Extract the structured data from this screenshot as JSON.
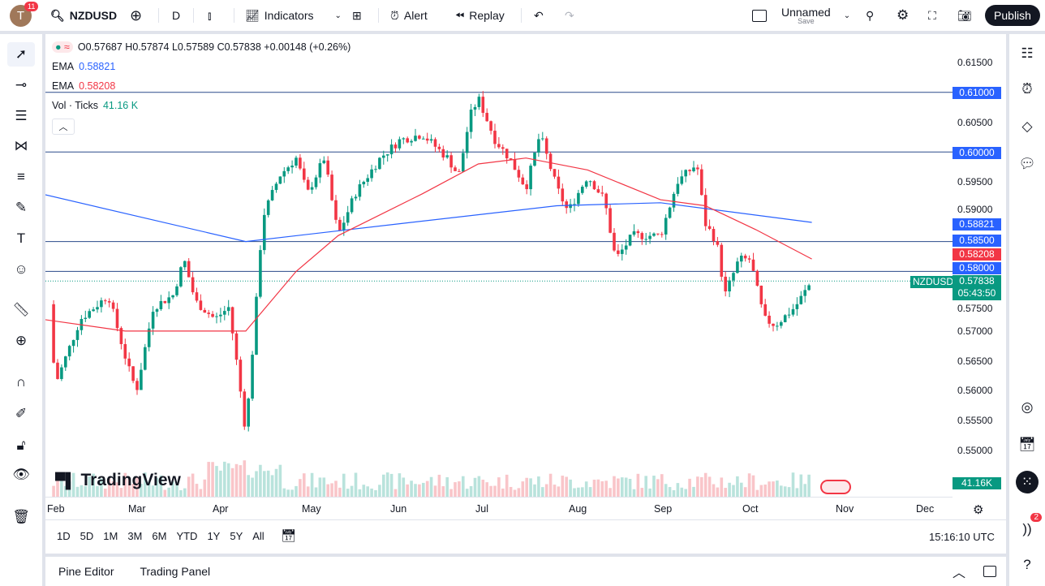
{
  "header": {
    "avatar_letter": "T",
    "notifications": "11",
    "symbol": "NZDUSD",
    "interval": "D",
    "indicators": "Indicators",
    "alert": "Alert",
    "replay": "Replay",
    "layout_name": "Unnamed",
    "save": "Save",
    "publish": "Publish"
  },
  "legend": {
    "ohlc": "O0.57687 H0.57874 L0.57589 C0.57838 +0.00148 (+0.26%)",
    "ema1_label": "EMA",
    "ema1_value": "0.58821",
    "ema2_label": "EMA",
    "ema2_value": "0.58208",
    "vol_label": "Vol · Ticks",
    "vol_value": "41.16 K"
  },
  "colors": {
    "up": "#089981",
    "down": "#f23645",
    "ema200": "#2962ff",
    "ema50": "#f23645",
    "hline": "#2a4a8a",
    "accent": "#2962ff"
  },
  "price_axis": [
    "0.61500",
    "0.61000",
    "0.60500",
    "0.60000",
    "0.59500",
    "0.59000",
    "0.58500",
    "0.58000",
    "0.57500",
    "0.57000",
    "0.56500",
    "0.56000",
    "0.55500",
    "0.55000"
  ],
  "price_labels": {
    "l61000": "0.61000",
    "l60000": "0.60000",
    "ema200": "0.58821",
    "l58500": "0.58500",
    "ema50": "0.58208",
    "l58000": "0.58000",
    "symbol": "NZDUSD",
    "last": "0.57838",
    "countdown": "05:43:50",
    "volume": "41.16K"
  },
  "time_axis": [
    "Feb",
    "Mar",
    "Apr",
    "May",
    "Jun",
    "Jul",
    "Aug",
    "Sep",
    "Oct",
    "Nov",
    "Dec"
  ],
  "logo": "TradingView",
  "ranges": [
    "1D",
    "5D",
    "1M",
    "3M",
    "6M",
    "YTD",
    "1Y",
    "5Y",
    "All"
  ],
  "clock": "15:16:10 UTC",
  "bottom_tabs": [
    "Pine Editor",
    "Trading Panel"
  ],
  "right_badge": "2",
  "chart_data": {
    "type": "candlestick",
    "symbol": "NZDUSD",
    "horizontal_lines": [
      0.61,
      0.6,
      0.585,
      0.58
    ],
    "close_path": [
      [
        "2024-01-30",
        0.5745
      ],
      [
        "2024-02-01",
        0.561
      ],
      [
        "2024-02-10",
        0.572
      ],
      [
        "2024-02-20",
        0.576
      ],
      [
        "2024-02-27",
        0.564
      ],
      [
        "2024-03-01",
        0.56
      ],
      [
        "2024-03-07",
        0.574
      ],
      [
        "2024-03-14",
        0.576
      ],
      [
        "2024-03-18",
        0.582
      ],
      [
        "2024-03-22",
        0.575
      ],
      [
        "2024-03-29",
        0.572
      ],
      [
        "2024-04-03",
        0.574
      ],
      [
        "2024-04-06",
        0.564
      ],
      [
        "2024-04-09",
        0.553
      ],
      [
        "2024-04-12",
        0.57
      ],
      [
        "2024-04-15",
        0.589
      ],
      [
        "2024-04-21",
        0.596
      ],
      [
        "2024-04-27",
        0.599
      ],
      [
        "2024-05-01",
        0.593
      ],
      [
        "2024-05-07",
        0.599
      ],
      [
        "2024-05-12",
        0.586
      ],
      [
        "2024-05-18",
        0.593
      ],
      [
        "2024-05-27",
        0.599
      ],
      [
        "2024-06-03",
        0.602
      ],
      [
        "2024-06-11",
        0.603
      ],
      [
        "2024-06-20",
        0.599
      ],
      [
        "2024-06-24",
        0.596
      ],
      [
        "2024-06-28",
        0.606
      ],
      [
        "2024-07-01",
        0.609
      ],
      [
        "2024-07-07",
        0.602
      ],
      [
        "2024-07-12",
        0.599
      ],
      [
        "2024-07-18",
        0.594
      ],
      [
        "2024-07-23",
        0.603
      ],
      [
        "2024-07-29",
        0.594
      ],
      [
        "2024-08-02",
        0.59
      ],
      [
        "2024-08-09",
        0.596
      ],
      [
        "2024-08-15",
        0.592
      ],
      [
        "2024-08-19",
        0.582
      ],
      [
        "2024-08-25",
        0.586
      ],
      [
        "2024-09-04",
        0.586
      ],
      [
        "2024-09-10",
        0.595
      ],
      [
        "2024-09-17",
        0.598
      ],
      [
        "2024-09-20",
        0.588
      ],
      [
        "2024-09-24",
        0.585
      ],
      [
        "2024-09-27",
        0.576
      ],
      [
        "2024-10-02",
        0.582
      ],
      [
        "2024-10-06",
        0.582
      ],
      [
        "2024-10-11",
        0.572
      ],
      [
        "2024-10-15",
        0.571
      ],
      [
        "2024-10-22",
        0.574
      ],
      [
        "2024-10-28",
        0.57838
      ]
    ],
    "ema200_path": [
      [
        "2024-01-27",
        0.593
      ],
      [
        "2024-04-09",
        0.585
      ],
      [
        "2024-06-03",
        0.588
      ],
      [
        "2024-07-29",
        0.591
      ],
      [
        "2024-09-04",
        0.5915
      ],
      [
        "2024-10-28",
        0.58821
      ]
    ],
    "ema50_path": [
      [
        "2024-01-27",
        0.572
      ],
      [
        "2024-02-26",
        0.57
      ],
      [
        "2024-04-09",
        0.57
      ],
      [
        "2024-04-27",
        0.58
      ],
      [
        "2024-05-12",
        0.586
      ],
      [
        "2024-06-11",
        0.593
      ],
      [
        "2024-07-01",
        0.598
      ],
      [
        "2024-07-18",
        0.599
      ],
      [
        "2024-08-09",
        0.597
      ],
      [
        "2024-09-04",
        0.592
      ],
      [
        "2024-09-20",
        0.591
      ],
      [
        "2024-10-08",
        0.587
      ],
      [
        "2024-10-28",
        0.58208
      ]
    ]
  }
}
